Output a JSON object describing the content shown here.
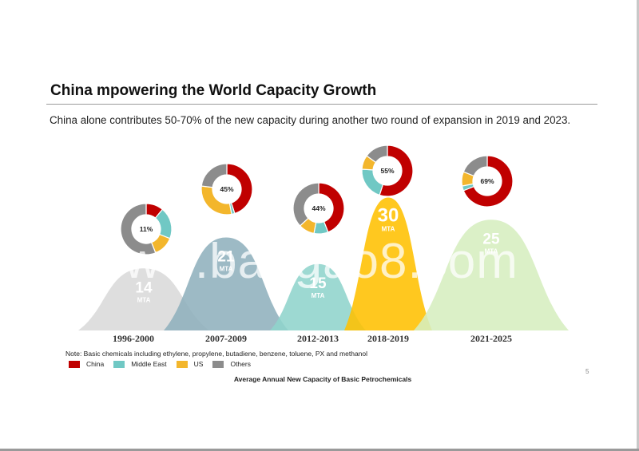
{
  "slide": {
    "title": "China mpowering  the World Capacity Growth",
    "subtitle": "China alone contributes 50-70% of the new capacity during another two round of expansion in 2019 and 2023.",
    "note": "Note: Basic chemicals including ethylene, propylene, butadiene, benzene, toluene, PX and methanol",
    "caption": "Average Annual New Capacity of Basic Petrochemicals",
    "page_number": "5",
    "watermark": "www.baogao8.com"
  },
  "chart_data": {
    "type": "area",
    "title": "Average Annual New Capacity of Basic Petrochemicals",
    "unit": "MTA",
    "categories": [
      "1996-2000",
      "2007-2009",
      "2012-2013",
      "2018-2019",
      "2021-2025"
    ],
    "values": [
      14,
      21,
      15,
      30,
      25
    ],
    "value_labels": [
      "14",
      "21",
      "15",
      "30",
      "25"
    ],
    "colors": [
      "#d9d9d9",
      "#8fb0bd",
      "#8fd4cc",
      "#ffc000",
      "#d6eebf"
    ],
    "legend": [
      {
        "name": "China",
        "color": "#c00000"
      },
      {
        "name": "Middle East",
        "color": "#70c8c4"
      },
      {
        "name": "US",
        "color": "#f3b62c"
      },
      {
        "name": "Others",
        "color": "#8c8c8c"
      }
    ],
    "donuts": [
      {
        "period": "1996-2000",
        "label": "11%",
        "shares": [
          11,
          20,
          13,
          56
        ]
      },
      {
        "period": "2007-2009",
        "label": "45%",
        "shares": [
          45,
          2,
          30,
          23
        ]
      },
      {
        "period": "2012-2013",
        "label": "44%",
        "shares": [
          44,
          9,
          10,
          37
        ]
      },
      {
        "period": "2018-2019",
        "label": "55%",
        "shares": [
          55,
          21,
          9,
          15
        ]
      },
      {
        "period": "2021-2025",
        "label": "69%",
        "shares": [
          69,
          3,
          9,
          19
        ]
      }
    ]
  }
}
